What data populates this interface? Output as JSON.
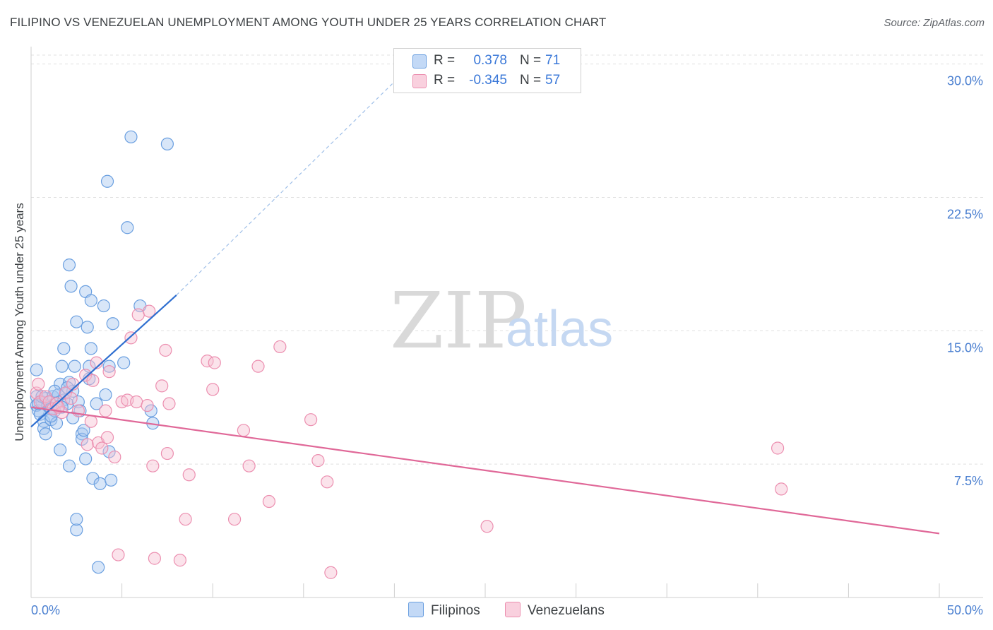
{
  "title": "FILIPINO VS VENEZUELAN UNEMPLOYMENT AMONG YOUTH UNDER 25 YEARS CORRELATION CHART",
  "source": "Source: ZipAtlas.com",
  "watermark": {
    "zip": "ZIP",
    "atlas": "atlas"
  },
  "colors": {
    "filipino_fill": "#a9c8f0",
    "filipino_stroke": "#6a9fe0",
    "filipino_line": "#2f6fd0",
    "venezuelan_fill": "#f7c0d2",
    "venezuelan_stroke": "#ec8fb0",
    "venezuelan_line": "#e06898",
    "tick_text": "#4a7fd0",
    "grid": "#e0e0e0"
  },
  "legend": {
    "rows": [
      {
        "r_label": "R =",
        "r_value": "0.378",
        "n_label": "N =",
        "n_value": "71"
      },
      {
        "r_label": "R =",
        "r_value": "-0.345",
        "n_label": "N =",
        "n_value": "57"
      }
    ]
  },
  "bottom_legend": {
    "filipinos": "Filipinos",
    "venezuelans": "Venezuelans"
  },
  "chart_data": {
    "type": "scatter",
    "title": "FILIPINO VS VENEZUELAN UNEMPLOYMENT AMONG YOUTH UNDER 25 YEARS CORRELATION CHART",
    "xlabel": "",
    "ylabel": "Unemployment Among Youth under 25 years",
    "xlim": [
      0,
      50
    ],
    "ylim": [
      0,
      30.5
    ],
    "x_tick_labels": [
      "0.0%",
      "50.0%"
    ],
    "y_ticks": [
      7.5,
      15.0,
      22.5,
      30.0
    ],
    "y_tick_labels": [
      "7.5%",
      "15.0%",
      "22.5%",
      "30.0%"
    ],
    "grid": true,
    "series": [
      {
        "name": "Filipinos",
        "trend": {
          "x": [
            0,
            8
          ],
          "y": [
            9.6,
            17.0
          ],
          "dashed_extension_to": [
            20,
            29.0
          ]
        },
        "points": [
          [
            0.3,
            12.8
          ],
          [
            0.3,
            11.3
          ],
          [
            0.3,
            10.8
          ],
          [
            0.4,
            10.5
          ],
          [
            0.5,
            10.3
          ],
          [
            0.6,
            11.0
          ],
          [
            0.7,
            9.9
          ],
          [
            0.7,
            9.5
          ],
          [
            0.8,
            9.2
          ],
          [
            0.9,
            10.8
          ],
          [
            1.0,
            11.0
          ],
          [
            1.1,
            10.6
          ],
          [
            1.1,
            10.0
          ],
          [
            1.2,
            11.3
          ],
          [
            1.3,
            10.5
          ],
          [
            1.4,
            9.8
          ],
          [
            1.5,
            11.4
          ],
          [
            1.6,
            8.3
          ],
          [
            1.6,
            12.0
          ],
          [
            1.7,
            13.0
          ],
          [
            1.8,
            11.1
          ],
          [
            1.8,
            14.0
          ],
          [
            1.9,
            11.5
          ],
          [
            2.0,
            10.9
          ],
          [
            2.1,
            7.4
          ],
          [
            2.1,
            12.1
          ],
          [
            2.1,
            18.7
          ],
          [
            2.2,
            17.5
          ],
          [
            2.3,
            11.6
          ],
          [
            2.3,
            10.1
          ],
          [
            2.4,
            13.0
          ],
          [
            2.5,
            3.8
          ],
          [
            2.5,
            4.4
          ],
          [
            2.5,
            15.5
          ],
          [
            2.6,
            11.0
          ],
          [
            2.7,
            10.5
          ],
          [
            2.8,
            9.2
          ],
          [
            2.8,
            8.9
          ],
          [
            2.9,
            9.4
          ],
          [
            3.0,
            7.8
          ],
          [
            3.0,
            17.2
          ],
          [
            3.1,
            15.2
          ],
          [
            3.2,
            13.0
          ],
          [
            3.2,
            12.3
          ],
          [
            3.3,
            14.0
          ],
          [
            3.3,
            16.7
          ],
          [
            3.4,
            6.7
          ],
          [
            3.6,
            10.9
          ],
          [
            3.7,
            1.7
          ],
          [
            3.8,
            6.4
          ],
          [
            4.0,
            16.4
          ],
          [
            4.1,
            11.4
          ],
          [
            4.2,
            23.4
          ],
          [
            4.3,
            13.0
          ],
          [
            4.3,
            8.2
          ],
          [
            4.4,
            6.6
          ],
          [
            4.5,
            15.4
          ],
          [
            5.1,
            13.2
          ],
          [
            5.3,
            20.8
          ],
          [
            5.5,
            25.9
          ],
          [
            6.0,
            16.4
          ],
          [
            6.6,
            10.5
          ],
          [
            6.7,
            9.8
          ],
          [
            7.5,
            25.5
          ],
          [
            0.4,
            10.9
          ],
          [
            0.8,
            11.2
          ],
          [
            1.3,
            11.6
          ],
          [
            1.7,
            10.7
          ],
          [
            2.0,
            11.8
          ],
          [
            1.1,
            10.2
          ],
          [
            0.6,
            11.3
          ]
        ]
      },
      {
        "name": "Venezuelans",
        "trend": {
          "x": [
            0,
            50
          ],
          "y": [
            10.7,
            3.6
          ]
        },
        "points": [
          [
            0.3,
            11.5
          ],
          [
            0.5,
            11.0
          ],
          [
            0.8,
            11.3
          ],
          [
            1.0,
            11.0
          ],
          [
            1.2,
            10.6
          ],
          [
            1.4,
            10.9
          ],
          [
            1.7,
            10.4
          ],
          [
            1.9,
            11.5
          ],
          [
            2.3,
            12.0
          ],
          [
            2.6,
            10.5
          ],
          [
            3.0,
            12.5
          ],
          [
            3.1,
            8.6
          ],
          [
            3.3,
            9.9
          ],
          [
            3.4,
            12.2
          ],
          [
            3.6,
            13.2
          ],
          [
            3.7,
            8.7
          ],
          [
            3.9,
            8.4
          ],
          [
            4.1,
            10.5
          ],
          [
            4.2,
            9.0
          ],
          [
            4.3,
            12.7
          ],
          [
            4.6,
            7.9
          ],
          [
            4.8,
            2.4
          ],
          [
            5.0,
            11.0
          ],
          [
            5.3,
            11.1
          ],
          [
            5.5,
            14.6
          ],
          [
            5.8,
            11.0
          ],
          [
            5.9,
            15.9
          ],
          [
            6.4,
            10.8
          ],
          [
            6.5,
            16.1
          ],
          [
            6.7,
            7.4
          ],
          [
            6.8,
            2.2
          ],
          [
            7.2,
            11.9
          ],
          [
            7.4,
            13.9
          ],
          [
            7.5,
            8.1
          ],
          [
            7.6,
            10.9
          ],
          [
            8.2,
            2.1
          ],
          [
            8.5,
            4.4
          ],
          [
            8.7,
            6.9
          ],
          [
            9.7,
            13.3
          ],
          [
            10.0,
            11.7
          ],
          [
            10.1,
            13.2
          ],
          [
            11.2,
            4.4
          ],
          [
            11.7,
            9.4
          ],
          [
            12.0,
            7.4
          ],
          [
            12.5,
            13.0
          ],
          [
            13.1,
            5.4
          ],
          [
            13.7,
            14.1
          ],
          [
            15.4,
            10.0
          ],
          [
            15.8,
            7.7
          ],
          [
            16.3,
            6.5
          ],
          [
            16.5,
            1.4
          ],
          [
            25.1,
            4.0
          ],
          [
            41.1,
            8.4
          ],
          [
            41.3,
            6.1
          ],
          [
            0.4,
            12.0
          ],
          [
            1.5,
            10.7
          ],
          [
            2.2,
            11.2
          ]
        ]
      }
    ]
  }
}
